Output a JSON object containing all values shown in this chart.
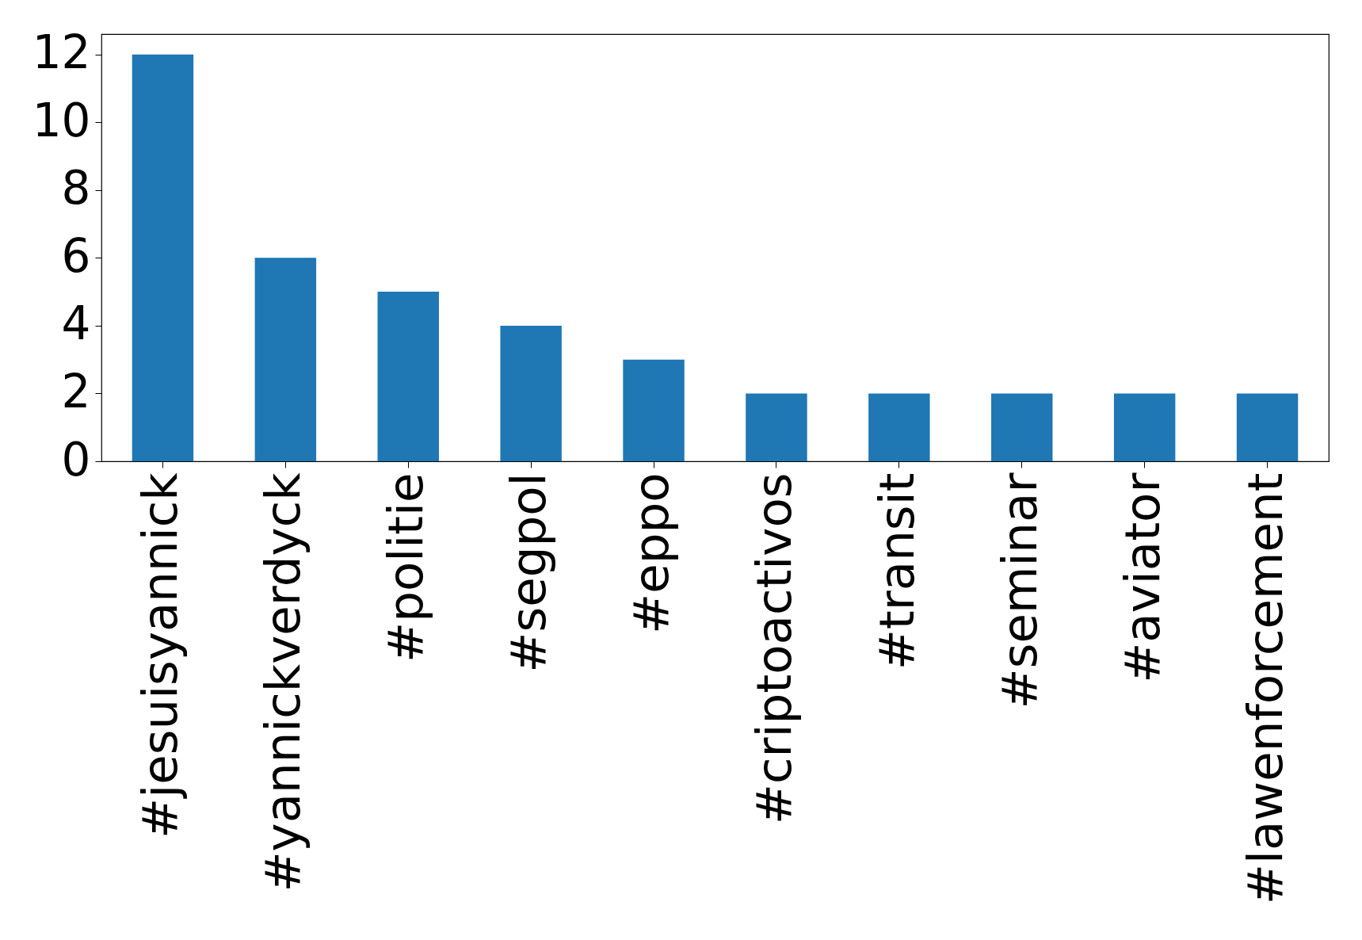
{
  "chart_data": {
    "type": "bar",
    "categories": [
      "#jesuisyannick",
      "#yannickverdyck",
      "#politie",
      "#segpol",
      "#eppo",
      "#criptoactivos",
      "#transit",
      "#seminar",
      "#aviator",
      "#lawenforcement"
    ],
    "values": [
      12,
      6,
      5,
      4,
      3,
      2,
      2,
      2,
      2,
      2
    ],
    "color": "#1f77b4",
    "ylim": [
      0,
      12.6
    ],
    "yticks": [
      0,
      2,
      4,
      6,
      8,
      10,
      12
    ],
    "grid": false
  }
}
